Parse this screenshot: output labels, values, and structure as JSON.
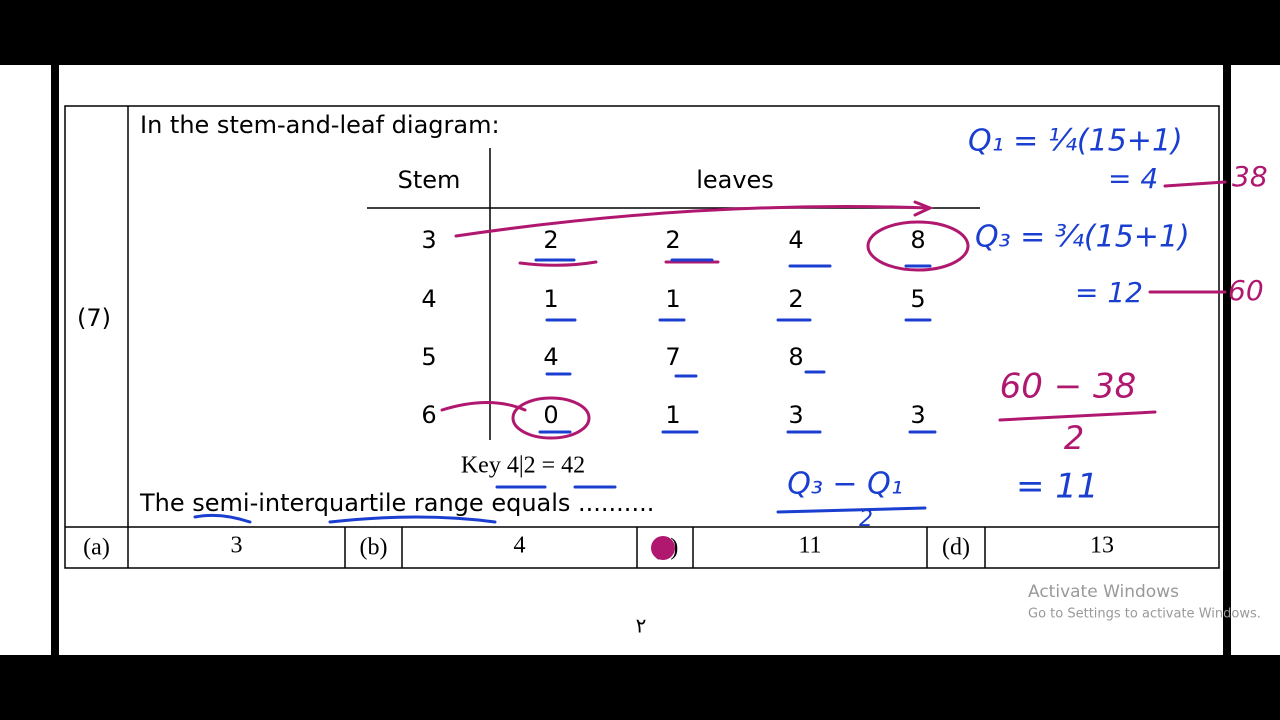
{
  "question": {
    "number": "(7)",
    "prompt": "In the stem-and-leaf diagram:",
    "diagram": {
      "stem_header": "Stem",
      "leaves_header": "leaves",
      "rows": [
        {
          "stem": "3",
          "leaves": [
            "2",
            "2",
            "4",
            "8"
          ]
        },
        {
          "stem": "4",
          "leaves": [
            "1",
            "1",
            "2",
            "5"
          ]
        },
        {
          "stem": "5",
          "leaves": [
            "4",
            "7",
            "8"
          ]
        },
        {
          "stem": "6",
          "leaves": [
            "0",
            "1",
            "3",
            "3"
          ]
        }
      ],
      "key": "Key 4|2 = 42"
    },
    "question_text": "The semi-interquartile range equals ..........",
    "options": [
      {
        "label": "(a)",
        "value": "3"
      },
      {
        "label": "(b)",
        "value": "4"
      },
      {
        "label": "(c)",
        "value": "11"
      },
      {
        "label": "(d)",
        "value": "13"
      }
    ]
  },
  "annotations": {
    "q1_formula": "Q₁ = ¼(15+1)",
    "q1_result": "= 4",
    "q1_value": "38",
    "q3_formula": "Q₃ = ¾(15+1)",
    "q3_result": "= 12",
    "q3_value": "60",
    "numerator": "60 − 38",
    "denominator": "2",
    "result": "= 11",
    "formula_numerator": "Q₃ − Q₁",
    "formula_denominator": "2"
  },
  "page_number": "٢",
  "watermark": {
    "title": "Activate Windows",
    "subtitle": "Go to Settings to activate Windows."
  }
}
